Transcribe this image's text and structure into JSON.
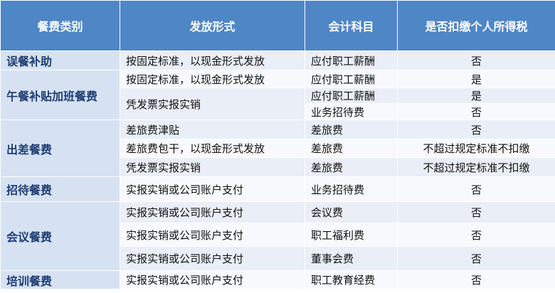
{
  "table": {
    "header": [
      "餐费类别",
      "发放形式",
      "会计科目",
      "是否扣缴个人所得税"
    ],
    "rows": [
      [
        "误餐补助",
        "按固定标准，以现金形式发放",
        "应付职工薪酬",
        "否"
      ],
      [
        "午餐补贴加班餐费",
        "按固定标准，以现金形式发放",
        "应付职工薪酬",
        "是"
      ],
      [
        "凭发票实报实销",
        "应付职工薪酬",
        "是"
      ],
      [
        "业务招待费",
        "否"
      ],
      [
        "出差餐费",
        "差旅费津贴",
        "差旅费",
        "否"
      ],
      [
        "差旅费包干，以现金形式发放",
        "差旅费",
        "不超过规定标准不扣缴"
      ],
      [
        "凭发票实报实销",
        "差旅费",
        "不超过规定标准不扣缴"
      ],
      [
        "招待餐费",
        "实报实销或公司账户支付",
        "业务招待费",
        "否"
      ],
      [
        "会议餐费",
        "实报实销或公司账户支付",
        "会议费",
        "否"
      ],
      [
        "实报实销或公司账户支付",
        "职工福利费",
        "否"
      ],
      [
        "实报实销或公司账户支付",
        "董事会费",
        "否"
      ],
      [
        "培训餐费",
        "实报实销或公司账户支付",
        "职工教育经费",
        "否"
      ]
    ]
  }
}
